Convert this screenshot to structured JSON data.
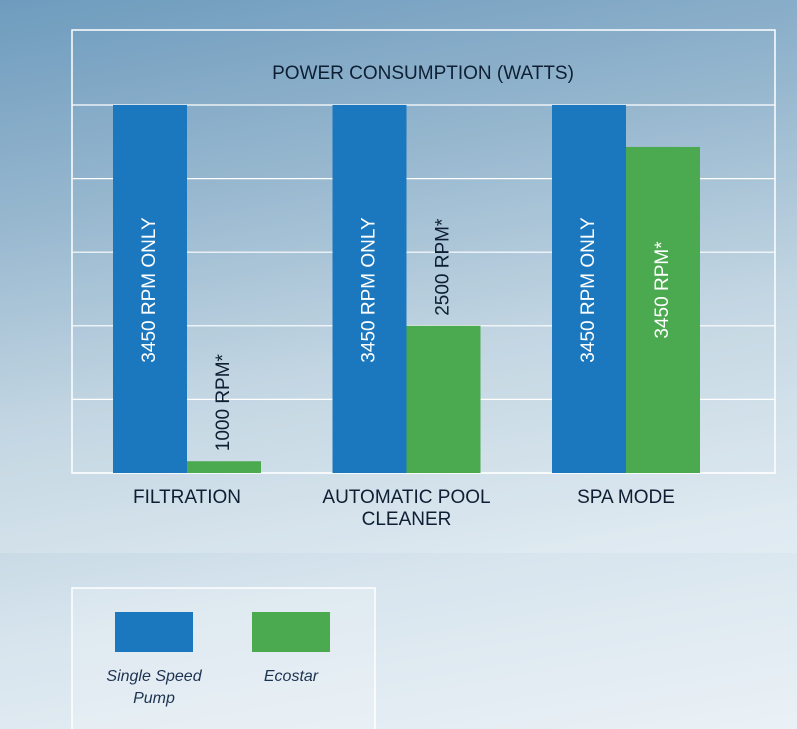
{
  "chart_data": {
    "type": "bar",
    "title": "POWER CONSUMPTION (WATTS)",
    "categories": [
      "FILTRATION",
      "AUTOMATIC POOL CLEANER",
      "SPA MODE"
    ],
    "series": [
      {
        "name": "Single Speed Pump",
        "color": "#1b78bf",
        "values": [
          5,
          5,
          5
        ],
        "value_labels": [
          "3450 RPM ONLY",
          "3450 RPM ONLY",
          "3450 RPM ONLY"
        ]
      },
      {
        "name": "Ecostar",
        "color": "#4ba94f",
        "values": [
          0.16,
          2,
          4.43
        ],
        "value_labels": [
          "1000 RPM*",
          "2500 RPM*",
          "3450 RPM*"
        ]
      }
    ],
    "ylim": [
      0,
      5
    ],
    "yticks": [
      0,
      1,
      2,
      3,
      4,
      5
    ],
    "grid": true,
    "legend": "bottom-left"
  }
}
